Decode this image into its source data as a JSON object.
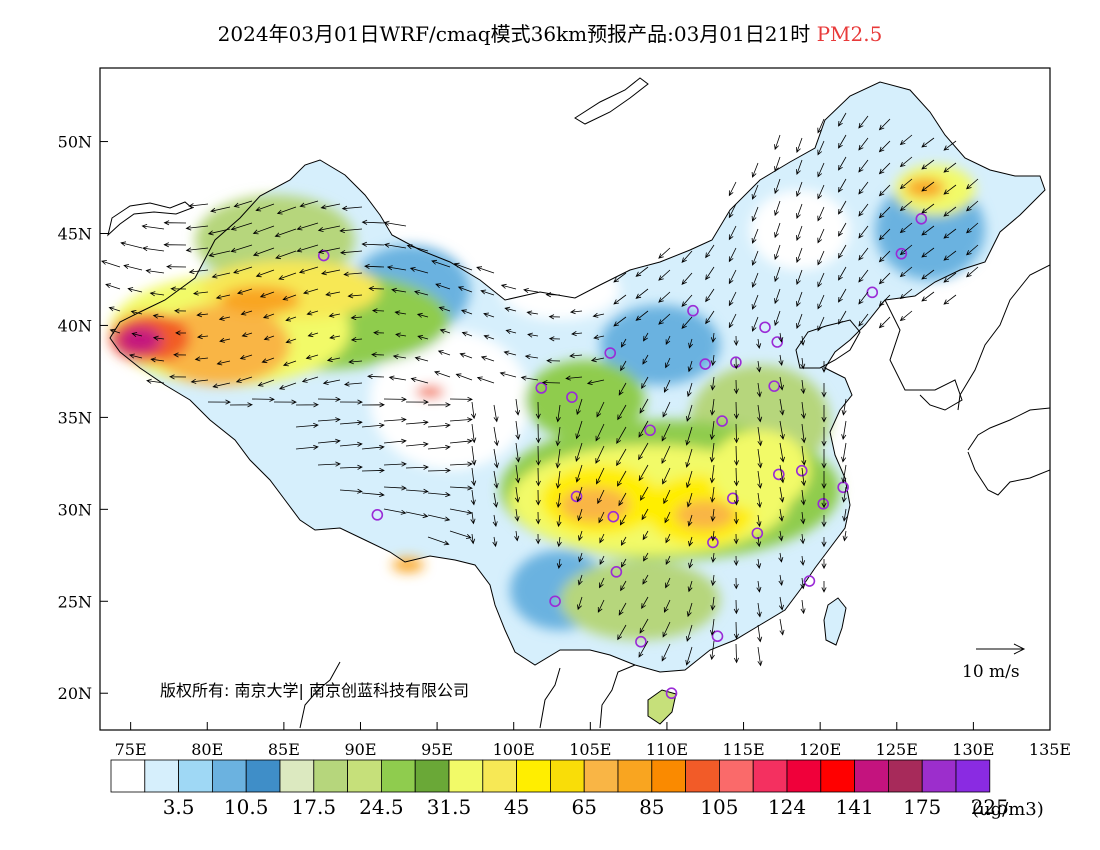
{
  "title": {
    "main": "2024年03月01日WRF/cmaq模式36km预报产品:03月01日21时",
    "product": "PM2.5"
  },
  "map": {
    "extent": {
      "lon": [
        73,
        135
      ],
      "lat": [
        18,
        54
      ]
    },
    "lat_ticks": [
      {
        "value": 20,
        "label": "20N"
      },
      {
        "value": 25,
        "label": "25N"
      },
      {
        "value": 30,
        "label": "30N"
      },
      {
        "value": 35,
        "label": "35N"
      },
      {
        "value": 40,
        "label": "40N"
      },
      {
        "value": 45,
        "label": "45N"
      },
      {
        "value": 50,
        "label": "50N"
      }
    ],
    "lon_ticks": [
      {
        "value": 75,
        "label": "75E"
      },
      {
        "value": 80,
        "label": "80E"
      },
      {
        "value": 85,
        "label": "85E"
      },
      {
        "value": 90,
        "label": "90E"
      },
      {
        "value": 95,
        "label": "95E"
      },
      {
        "value": 100,
        "label": "100E"
      },
      {
        "value": 105,
        "label": "105E"
      },
      {
        "value": 110,
        "label": "110E"
      },
      {
        "value": 115,
        "label": "115E"
      },
      {
        "value": 120,
        "label": "120E"
      },
      {
        "value": 125,
        "label": "125E"
      },
      {
        "value": 130,
        "label": "130E"
      },
      {
        "value": 135,
        "label": "135E"
      }
    ],
    "copyright": "版权所有: 南京大学| 南京创蓝科技有限公司",
    "wind_reference": "10 m/s",
    "wind_reference_speed": 10
  },
  "colorbar": {
    "unit": "(ug/m3)",
    "colors": [
      "#ffffff",
      "#d6effc",
      "#9fd8f5",
      "#6bb2e0",
      "#3f8ec8",
      "#dce9c0",
      "#b6d67c",
      "#c6e07a",
      "#8fcc4e",
      "#6aa837",
      "#f2fa68",
      "#f7e855",
      "#ffee00",
      "#f9dd08",
      "#f9b545",
      "#f9a520",
      "#fa8a00",
      "#f25b28",
      "#fa6a6a",
      "#f43060",
      "#f0003a",
      "#ff0000",
      "#c4137e",
      "#a72a5a",
      "#9c2ecc",
      "#8a2be2"
    ],
    "labels": [
      {
        "after": 1,
        "text": "3.5"
      },
      {
        "after": 3,
        "text": "10.5"
      },
      {
        "after": 5,
        "text": "17.5"
      },
      {
        "after": 7,
        "text": "24.5"
      },
      {
        "after": 9,
        "text": "31.5"
      },
      {
        "after": 11,
        "text": "45"
      },
      {
        "after": 13,
        "text": "65"
      },
      {
        "after": 15,
        "text": "85"
      },
      {
        "after": 17,
        "text": "105"
      },
      {
        "after": 19,
        "text": "124"
      },
      {
        "after": 21,
        "text": "141"
      },
      {
        "after": 23,
        "text": "175"
      },
      {
        "after": 25,
        "text": "225"
      }
    ]
  },
  "stations": [
    {
      "lon": 87.6,
      "lat": 43.8
    },
    {
      "lon": 101.8,
      "lat": 36.6
    },
    {
      "lon": 103.8,
      "lat": 36.1
    },
    {
      "lon": 106.3,
      "lat": 38.5
    },
    {
      "lon": 111.7,
      "lat": 40.8
    },
    {
      "lon": 112.5,
      "lat": 37.9
    },
    {
      "lon": 114.5,
      "lat": 38.0
    },
    {
      "lon": 116.4,
      "lat": 39.9
    },
    {
      "lon": 117.2,
      "lat": 39.1
    },
    {
      "lon": 123.4,
      "lat": 41.8
    },
    {
      "lon": 125.3,
      "lat": 43.9
    },
    {
      "lon": 126.6,
      "lat": 45.8
    },
    {
      "lon": 113.6,
      "lat": 34.8
    },
    {
      "lon": 117.0,
      "lat": 36.7
    },
    {
      "lon": 108.9,
      "lat": 34.3
    },
    {
      "lon": 104.1,
      "lat": 30.7
    },
    {
      "lon": 106.5,
      "lat": 29.6
    },
    {
      "lon": 114.3,
      "lat": 30.6
    },
    {
      "lon": 117.3,
      "lat": 31.9
    },
    {
      "lon": 118.8,
      "lat": 32.1
    },
    {
      "lon": 121.5,
      "lat": 31.2
    },
    {
      "lon": 120.2,
      "lat": 30.3
    },
    {
      "lon": 115.9,
      "lat": 28.7
    },
    {
      "lon": 113.0,
      "lat": 28.2
    },
    {
      "lon": 106.7,
      "lat": 26.6
    },
    {
      "lon": 102.7,
      "lat": 25.0
    },
    {
      "lon": 108.3,
      "lat": 22.8
    },
    {
      "lon": 113.3,
      "lat": 23.1
    },
    {
      "lon": 119.3,
      "lat": 26.1
    },
    {
      "lon": 110.3,
      "lat": 20.0
    },
    {
      "lon": 91.1,
      "lat": 29.7
    }
  ]
}
